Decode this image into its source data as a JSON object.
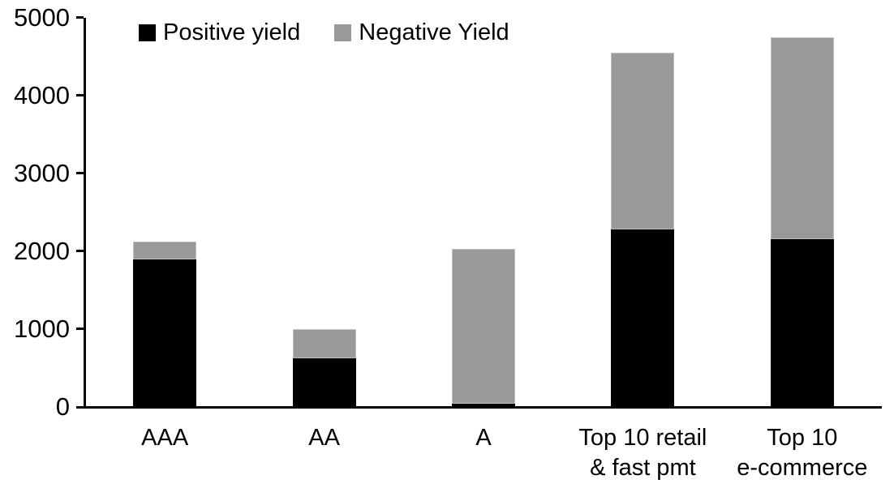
{
  "chart_data": {
    "type": "bar",
    "stacked": true,
    "title": "",
    "xlabel": "",
    "ylabel": "",
    "categories": [
      "AAA",
      "AA",
      "A",
      "Top 10 retail\n& fast pmt",
      "Top 10\ne-commerce"
    ],
    "series": [
      {
        "name": "Positive yield",
        "color": "#000000",
        "values": [
          1890,
          620,
          40,
          2280,
          2150
        ]
      },
      {
        "name": "Negative Yield",
        "color": "#999999",
        "values": [
          230,
          380,
          1990,
          2270,
          2600
        ]
      }
    ],
    "totals": [
      2120,
      1000,
      2030,
      4550,
      4750
    ],
    "ylim": [
      0,
      5000
    ],
    "yticks": [
      0,
      1000,
      2000,
      3000,
      4000,
      5000
    ],
    "grid": false,
    "legend_position": "top-inside",
    "axis_color": "#000000",
    "background_color": "#ffffff"
  }
}
